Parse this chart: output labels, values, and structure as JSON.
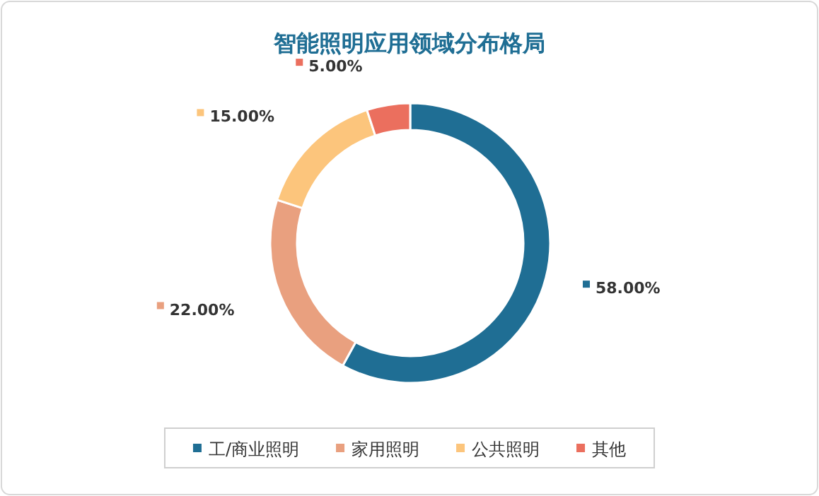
{
  "chart_data": {
    "type": "donut",
    "title": "智能照明应用领域分布格局",
    "categories": [
      "工/商业照明",
      "家用照明",
      "公共照明",
      "其他"
    ],
    "values": [
      58,
      22,
      15,
      5
    ],
    "colors": [
      "#1f6e94",
      "#e9a07f",
      "#fcc57c",
      "#eb6f5e"
    ],
    "value_labels": [
      "58.00%",
      "22.00%",
      "15.00%",
      "5.00%"
    ],
    "legend": "bottom"
  }
}
